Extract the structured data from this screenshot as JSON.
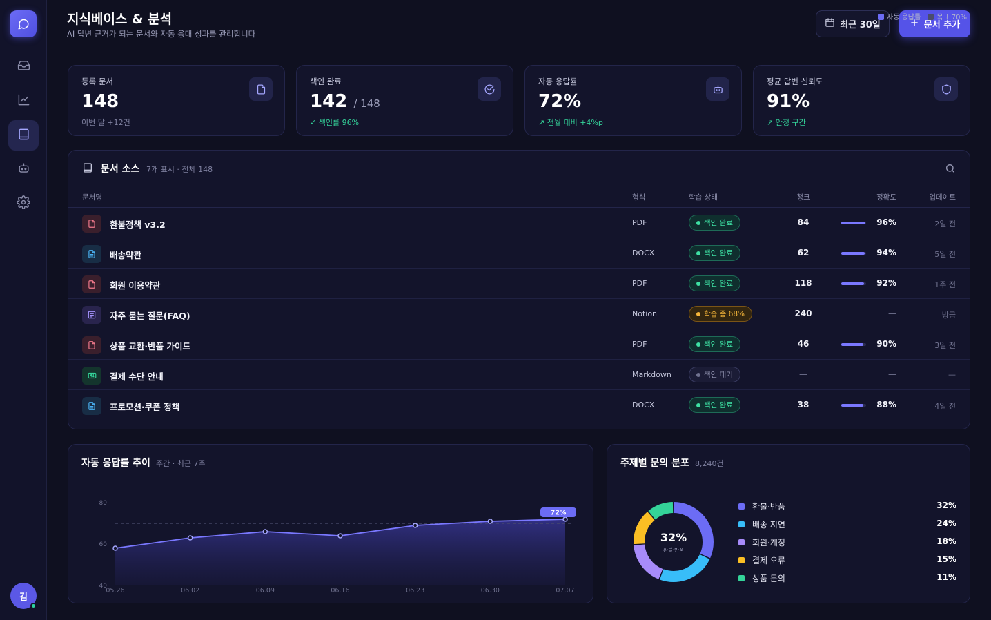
{
  "header": {
    "title": "지식베이스 & 분석",
    "subtitle": "AI 답변 근거가 되는 문서와 자동 응대 성과를 관리합니다",
    "date_range": "최근 30일",
    "add_button": "문서 추가",
    "legend": [
      {
        "label": "자동 응답률",
        "color": "#6c6cf5"
      },
      {
        "label": "목표 70%",
        "color": "#4a4c6e"
      }
    ]
  },
  "sidebar": {
    "items": [
      {
        "name": "inbox",
        "icon": "inbox-icon",
        "active": false
      },
      {
        "name": "analytics",
        "icon": "chart-icon",
        "active": false
      },
      {
        "name": "knowledge",
        "icon": "book-icon",
        "active": true
      },
      {
        "name": "bot",
        "icon": "robot-icon",
        "active": false
      },
      {
        "name": "settings",
        "icon": "gear-icon",
        "active": false
      }
    ],
    "user_initial": "김"
  },
  "stats": [
    {
      "label": "등록 문서",
      "value": "148",
      "suffix": "",
      "sub": "이번 달 +12건",
      "sub_style": "muted",
      "icon": "document-icon"
    },
    {
      "label": "색인 완료",
      "value": "142",
      "suffix": "/ 148",
      "sub": "색인률 96%",
      "sub_style": "green",
      "icon": "check-circle-icon"
    },
    {
      "label": "자동 응답률",
      "value": "72%",
      "suffix": "",
      "sub": "전월 대비 +4%p",
      "sub_style": "green",
      "icon": "robot-icon"
    },
    {
      "label": "평균 답변 신뢰도",
      "value": "91%",
      "suffix": "",
      "sub": "안정 구간",
      "sub_style": "green",
      "icon": "shield-icon"
    }
  ],
  "docs": {
    "title": "문서 소스",
    "meta": "7개 표시 · 전체 148",
    "columns": {
      "name": "문서명",
      "format": "형식",
      "status": "학습 상태",
      "chunks": "청크",
      "accuracy": "정확도",
      "updated": "업데이트"
    },
    "rows": [
      {
        "name": "환불정책 v3.2",
        "type": "pdf",
        "format": "PDF",
        "status": "색인 완료",
        "state": "done",
        "chunks": "84",
        "accuracy": "96%",
        "acc_value": 0.96,
        "updated": "2일 전"
      },
      {
        "name": "배송약관",
        "type": "docx",
        "format": "DOCX",
        "status": "색인 완료",
        "state": "done",
        "chunks": "62",
        "accuracy": "94%",
        "acc_value": 0.94,
        "updated": "5일 전"
      },
      {
        "name": "회원 이용약관",
        "type": "pdf",
        "format": "PDF",
        "status": "색인 완료",
        "state": "done",
        "chunks": "118",
        "accuracy": "92%",
        "acc_value": 0.92,
        "updated": "1주 전"
      },
      {
        "name": "자주 묻는 질문(FAQ)",
        "type": "notion",
        "format": "Notion",
        "status": "학습 중 68%",
        "state": "learn",
        "chunks": "240",
        "accuracy": "—",
        "acc_value": null,
        "updated": "방금"
      },
      {
        "name": "상품 교환·반품 가이드",
        "type": "pdf",
        "format": "PDF",
        "status": "색인 완료",
        "state": "done",
        "chunks": "46",
        "accuracy": "90%",
        "acc_value": 0.9,
        "updated": "3일 전"
      },
      {
        "name": "결제 수단 안내",
        "type": "md",
        "format": "Markdown",
        "status": "색인 대기",
        "state": "wait",
        "chunks": "—",
        "accuracy": "—",
        "acc_value": null,
        "updated": "—"
      },
      {
        "name": "프로모션·쿠폰 정책",
        "type": "docx",
        "format": "DOCX",
        "status": "색인 완료",
        "state": "done",
        "chunks": "38",
        "accuracy": "88%",
        "acc_value": 0.88,
        "updated": "4일 전"
      }
    ]
  },
  "trend": {
    "title": "자동 응답률 추이",
    "meta": "주간 · 최근 7주"
  },
  "topics": {
    "title": "주제별 문의 분포",
    "meta": "8,240건",
    "center_value": "32%",
    "center_label": "환불·반품",
    "items": [
      {
        "label": "환불·반품",
        "value": "32%",
        "pct": 32,
        "color": "#6c6cf5"
      },
      {
        "label": "배송 지연",
        "value": "24%",
        "pct": 24,
        "color": "#38bdf8"
      },
      {
        "label": "회원·계정",
        "value": "18%",
        "pct": 18,
        "color": "#a78bfa"
      },
      {
        "label": "결제 오류",
        "value": "15%",
        "pct": 15,
        "color": "#fbbf24"
      },
      {
        "label": "상품 문의",
        "value": "11%",
        "pct": 11,
        "color": "#34d399"
      }
    ]
  },
  "chart_data": {
    "type": "line",
    "x": [
      "05.26",
      "06.02",
      "06.09",
      "06.16",
      "06.23",
      "06.30",
      "07.07"
    ],
    "series": [
      {
        "values": [
          58,
          63,
          66,
          64,
          69,
          71,
          72
        ]
      }
    ],
    "target": 70,
    "ylim": [
      40,
      80
    ],
    "yticks": [
      "40",
      "60",
      "80"
    ],
    "last_label": "72%",
    "line_color": "#7a78ff",
    "target_color": "#4a4c6e"
  }
}
